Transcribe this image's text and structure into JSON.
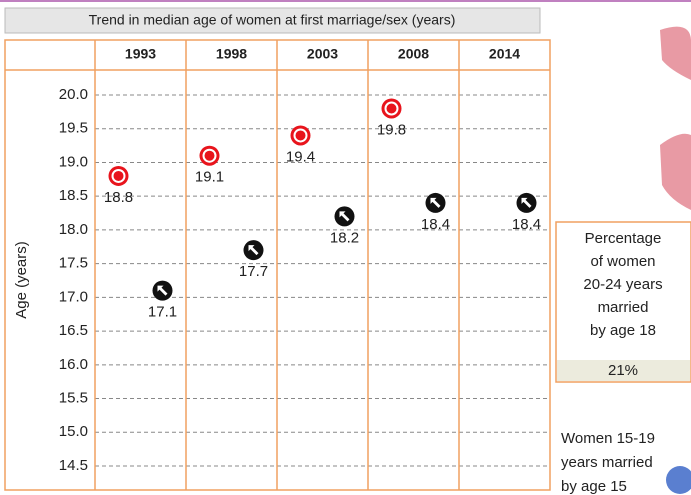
{
  "chart_data": {
    "type": "scatter",
    "title": "Trend in median age of women at first marriage/sex (years)",
    "y_label": "Age (years)",
    "categories": [
      "1993",
      "1998",
      "2003",
      "2008",
      "2014"
    ],
    "series": [
      {
        "color": "#e8141c",
        "values": [
          18.8,
          19.1,
          19.4,
          19.8,
          null
        ]
      },
      {
        "color": "#111111",
        "values": [
          17.1,
          17.7,
          18.2,
          18.4,
          18.4
        ]
      }
    ],
    "ylim": [
      14.5,
      20.0
    ],
    "yticks": [
      {
        "value": 20,
        "label": "20.0"
      },
      {
        "value": 19.5,
        "label": "19.5"
      },
      {
        "value": 19,
        "label": "19.0"
      },
      {
        "value": 18.5,
        "label": "18.5"
      },
      {
        "value": 18,
        "label": "18.0"
      },
      {
        "value": 17.5,
        "label": "17.5"
      },
      {
        "value": 17,
        "label": "17.0"
      },
      {
        "value": 16.5,
        "label": "16.5"
      },
      {
        "value": 16,
        "label": "16.0"
      },
      {
        "value": 15.5,
        "label": "15.5"
      },
      {
        "value": 15,
        "label": "15.0"
      },
      {
        "value": 14.5,
        "label": "14.5"
      }
    ],
    "grid": true
  },
  "side_panel": {
    "heading": [
      "Percentage",
      "of women",
      "20-24 years",
      "married",
      "by age 18"
    ],
    "value": "21%",
    "note": [
      "Women 15-19",
      "years married",
      "by age 15"
    ]
  }
}
